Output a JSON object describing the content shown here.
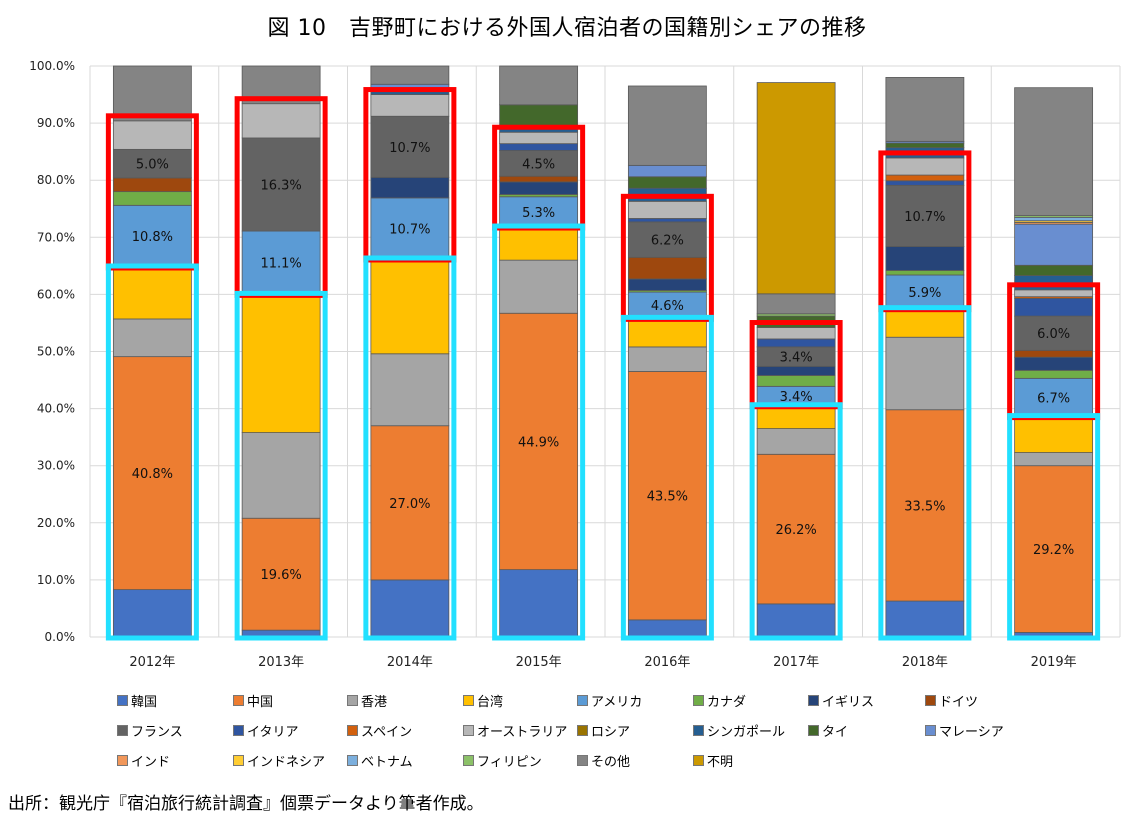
{
  "chart_data": {
    "type": "bar",
    "stacked": true,
    "title": "図 10　吉野町における外国人宿泊者の国籍別シェアの推移",
    "xlabel": "",
    "ylabel": "",
    "ylim": [
      0,
      100
    ],
    "yticks": [
      "0.0%",
      "10.0%",
      "20.0%",
      "30.0%",
      "40.0%",
      "50.0%",
      "60.0%",
      "70.0%",
      "80.0%",
      "90.0%",
      "100.0%"
    ],
    "grid": true,
    "legend_position": "bottom",
    "categories": [
      "2012年",
      "2013年",
      "2014年",
      "2015年",
      "2016年",
      "2017年",
      "2018年",
      "2019年"
    ],
    "series": [
      {
        "name": "韓国",
        "color": "#4472C4",
        "values": [
          8.3,
          1.2,
          10.0,
          11.8,
          3.0,
          5.8,
          6.3,
          0.8
        ]
      },
      {
        "name": "中国",
        "color": "#ED7D31",
        "values": [
          40.8,
          19.6,
          27.0,
          44.9,
          43.5,
          26.2,
          33.5,
          29.2
        ],
        "labels": [
          "40.8%",
          "19.6%",
          "27.0%",
          "44.9%",
          "43.5%",
          "26.2%",
          "33.5%",
          "29.2%"
        ]
      },
      {
        "name": "香港",
        "color": "#A5A5A5",
        "values": [
          6.6,
          15.0,
          12.6,
          9.3,
          4.3,
          4.5,
          12.7,
          2.3
        ]
      },
      {
        "name": "台湾",
        "color": "#FFC000",
        "values": [
          9.1,
          24.2,
          16.6,
          5.8,
          5.0,
          4.0,
          5.0,
          6.3
        ]
      },
      {
        "name": "アメリカ",
        "color": "#5B9BD5",
        "values": [
          10.8,
          11.1,
          10.7,
          5.3,
          4.6,
          3.4,
          5.9,
          6.7
        ],
        "labels": [
          "10.8%",
          "11.1%",
          "10.7%",
          "5.3%",
          "4.6%",
          "3.4%",
          "5.9%",
          "6.7%"
        ]
      },
      {
        "name": "カナダ",
        "color": "#70AD47",
        "values": [
          2.4,
          0,
          0,
          0.4,
          0.3,
          1.9,
          0.8,
          1.4
        ]
      },
      {
        "name": "イギリス",
        "color": "#264478",
        "values": [
          0,
          0,
          3.6,
          2.2,
          2.0,
          1.6,
          4.2,
          2.3
        ]
      },
      {
        "name": "ドイツ",
        "color": "#9E480E",
        "values": [
          2.4,
          0,
          0,
          1.0,
          3.8,
          0,
          0,
          1.2
        ]
      },
      {
        "name": "フランス",
        "color": "#636363",
        "values": [
          5.0,
          16.3,
          10.7,
          4.5,
          6.2,
          3.4,
          10.7,
          6.0
        ],
        "labels": [
          "5.0%",
          "16.3%",
          "10.7%",
          "4.5%",
          "6.2%",
          "3.4%",
          "10.7%",
          "6.0%"
        ]
      },
      {
        "name": "イタリア",
        "color": "#2F55A0",
        "values": [
          0,
          0,
          0,
          1.2,
          0.6,
          1.4,
          0.8,
          3.1
        ]
      },
      {
        "name": "スペイン",
        "color": "#D2600E",
        "values": [
          0,
          0,
          0,
          0,
          0,
          0,
          1.0,
          0.3
        ]
      },
      {
        "name": "オーストラリア",
        "color": "#B7B7B7",
        "values": [
          5.0,
          6.0,
          3.8,
          2.0,
          3.0,
          2.0,
          3.0,
          1.2
        ]
      },
      {
        "name": "ロシア",
        "color": "#997300",
        "values": [
          0,
          0,
          0,
          0,
          0,
          0,
          0,
          0
        ]
      },
      {
        "name": "シンガポール",
        "color": "#255E91",
        "values": [
          0,
          0,
          0.5,
          0.6,
          2.3,
          0,
          1.8,
          2.5
        ]
      },
      {
        "name": "タイ",
        "color": "#43682B",
        "values": [
          0,
          0,
          0,
          4.2,
          2.0,
          2.0,
          0.8,
          1.8
        ]
      },
      {
        "name": "マレーシア",
        "color": "#698ED0",
        "values": [
          0,
          0,
          1.3,
          0,
          2.0,
          0,
          0.3,
          7.2
        ]
      },
      {
        "name": "インド",
        "color": "#F1975A",
        "values": [
          0,
          0,
          0,
          0,
          0,
          0,
          0,
          0.3
        ]
      },
      {
        "name": "インドネシア",
        "color": "#FFCD33",
        "values": [
          0,
          0,
          0,
          0,
          0,
          0,
          0,
          0.3
        ]
      },
      {
        "name": "ベトナム",
        "color": "#7CAFDD",
        "values": [
          0,
          0,
          0,
          0,
          0,
          0,
          0,
          0.6
        ]
      },
      {
        "name": "フィリピン",
        "color": "#8CC168",
        "values": [
          0,
          0,
          0,
          0,
          0,
          0.4,
          0,
          0.3
        ]
      },
      {
        "name": "その他",
        "color": "#848484",
        "values": [
          9.6,
          6.6,
          3.2,
          6.8,
          13.9,
          3.5,
          11.2,
          22.4
        ]
      },
      {
        "name": "不明",
        "color": "#CC9900",
        "values": [
          0,
          0,
          0,
          0,
          0,
          37.0,
          0,
          0
        ]
      }
    ],
    "annotations": [
      {
        "type": "box",
        "color": "#FF0000",
        "description": "Western countries group (アメリカ〜オーストラリア)",
        "from_series": "アメリカ",
        "to_series": "オーストラリア"
      },
      {
        "type": "box",
        "color": "#22E0FF",
        "description": "East Asian countries group (韓国〜台湾)",
        "from_series": "韓国",
        "to_series": "台湾"
      }
    ]
  },
  "source_note": "出所：観光庁『宿泊旅行統計調査』個票データより筆者作成。"
}
